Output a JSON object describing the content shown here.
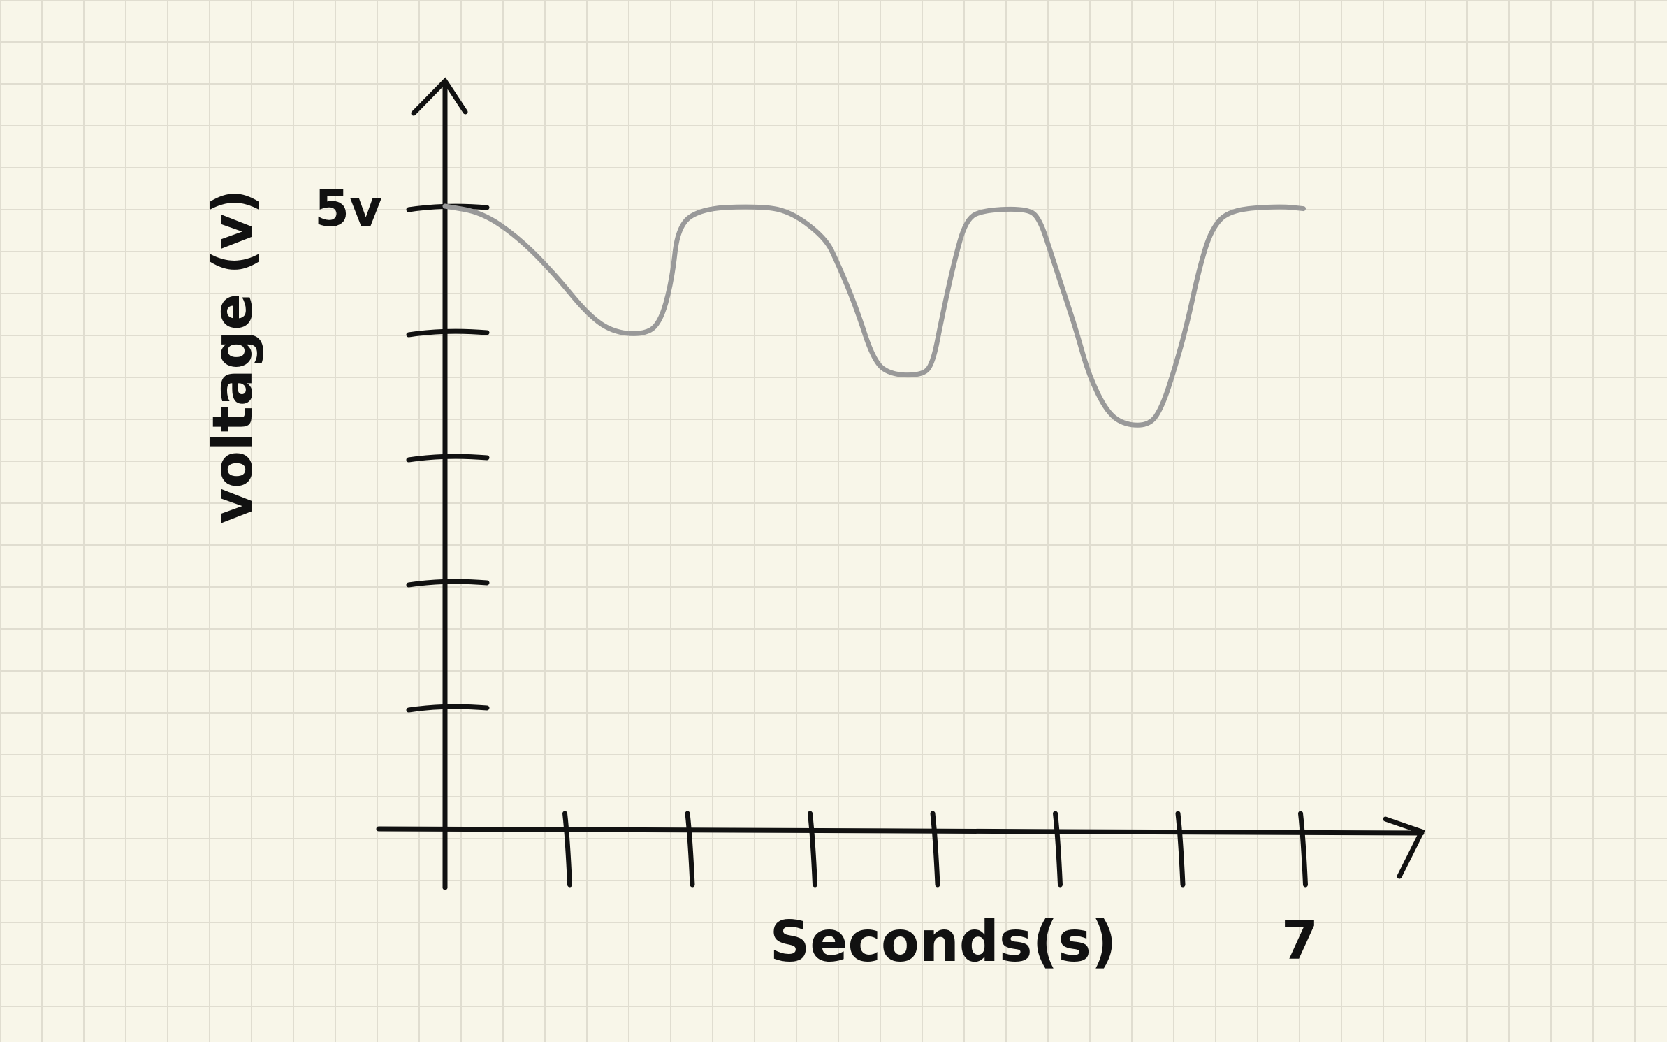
{
  "chart_data": {
    "type": "line",
    "title": "",
    "ylabel": "voltage (v)",
    "xlabel": "Seconds(s)",
    "x_tick_labels": [
      {
        "x": 7,
        "label": "7"
      }
    ],
    "y_tick_labels": [
      {
        "y": 5,
        "label": "5v"
      }
    ],
    "xlim": [
      0,
      7.5
    ],
    "ylim": [
      0,
      5.2
    ],
    "x_ticks": [
      1,
      2,
      3,
      4,
      5,
      6,
      7
    ],
    "y_ticks": [
      1,
      2,
      3,
      4,
      5
    ],
    "grid": true,
    "series": [
      {
        "color": "#999999",
        "points": [
          [
            0,
            5.0
          ],
          [
            0.3,
            4.95
          ],
          [
            0.6,
            4.75
          ],
          [
            0.9,
            4.45
          ],
          [
            1.15,
            4.15
          ],
          [
            1.35,
            4.0
          ],
          [
            1.6,
            3.97
          ],
          [
            1.75,
            4.05
          ],
          [
            1.85,
            4.4
          ],
          [
            1.9,
            4.85
          ],
          [
            2.1,
            4.98
          ],
          [
            2.5,
            5.0
          ],
          [
            2.8,
            4.97
          ],
          [
            3.1,
            4.75
          ],
          [
            3.2,
            4.55
          ],
          [
            3.35,
            4.2
          ],
          [
            3.5,
            3.75
          ],
          [
            3.65,
            3.65
          ],
          [
            3.9,
            3.65
          ],
          [
            3.98,
            3.75
          ],
          [
            4.05,
            4.1
          ],
          [
            4.15,
            4.55
          ],
          [
            4.25,
            4.9
          ],
          [
            4.4,
            4.97
          ],
          [
            4.75,
            4.98
          ],
          [
            4.85,
            4.9
          ],
          [
            4.95,
            4.6
          ],
          [
            5.05,
            4.3
          ],
          [
            5.15,
            4.0
          ],
          [
            5.25,
            3.65
          ],
          [
            5.4,
            3.35
          ],
          [
            5.55,
            3.25
          ],
          [
            5.75,
            3.25
          ],
          [
            5.85,
            3.4
          ],
          [
            5.95,
            3.7
          ],
          [
            6.05,
            4.05
          ],
          [
            6.15,
            4.5
          ],
          [
            6.25,
            4.82
          ],
          [
            6.4,
            4.97
          ],
          [
            6.8,
            5.0
          ],
          [
            7.0,
            4.98
          ]
        ]
      }
    ]
  }
}
